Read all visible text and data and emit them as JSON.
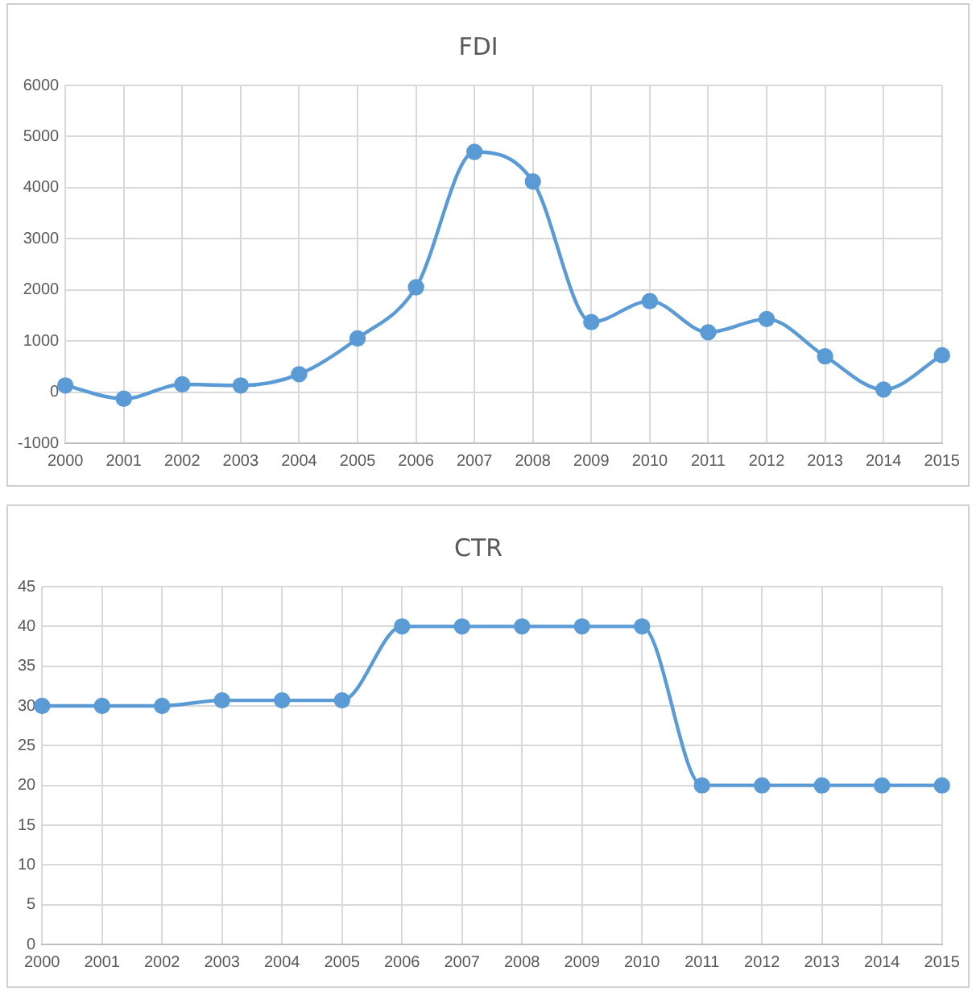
{
  "chart_data": [
    {
      "type": "line",
      "title": "FDI",
      "categories": [
        "2000",
        "2001",
        "2002",
        "2003",
        "2004",
        "2005",
        "2006",
        "2007",
        "2008",
        "2009",
        "2010",
        "2011",
        "2012",
        "2013",
        "2014",
        "2015"
      ],
      "series": [
        {
          "color": "#5b9bd5",
          "values": [
            130,
            -130,
            150,
            130,
            350,
            1050,
            2050,
            4700,
            4120,
            1370,
            1780,
            1170,
            1430,
            700,
            50,
            720
          ]
        }
      ],
      "ylim": [
        -1000,
        6000
      ],
      "yticks": [
        -1000,
        0,
        1000,
        2000,
        3000,
        4000,
        5000,
        6000
      ],
      "grid": true,
      "legend": false,
      "marker": "circle",
      "line_style": "solid"
    },
    {
      "type": "line",
      "title": "CTR",
      "categories": [
        "2000",
        "2001",
        "2002",
        "2003",
        "2004",
        "2005",
        "2006",
        "2007",
        "2008",
        "2009",
        "2010",
        "2011",
        "2012",
        "2013",
        "2014",
        "2015"
      ],
      "series": [
        {
          "color": "#5b9bd5",
          "values": [
            30,
            30,
            30,
            30.7,
            30.7,
            30.7,
            40,
            40,
            40,
            40,
            40,
            20,
            20,
            20,
            20,
            20
          ]
        }
      ],
      "ylim": [
        0,
        45
      ],
      "yticks": [
        0,
        5,
        10,
        15,
        20,
        25,
        30,
        35,
        40,
        45
      ],
      "grid": true,
      "legend": false,
      "marker": "circle",
      "line_style": "solid"
    }
  ]
}
